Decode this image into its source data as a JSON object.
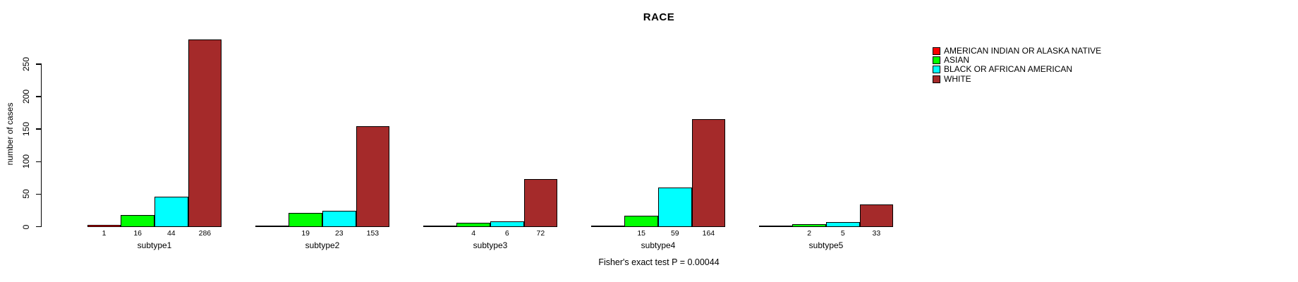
{
  "title": "RACE",
  "y_axis": {
    "label": "number of cases"
  },
  "footer": {
    "annotation": "Fisher's exact test P = 0.00044"
  },
  "colors": {
    "background": "#FFFFFF",
    "text": "#000000",
    "bar_border": "#000000"
  },
  "legend": {
    "position": "top-right",
    "items": [
      {
        "label": "AMERICAN INDIAN OR ALASKA NATIVE",
        "color": "#FF0000"
      },
      {
        "label": "ASIAN",
        "color": "#00FF00"
      },
      {
        "label": "BLACK OR AFRICAN AMERICAN",
        "color": "#00FFFF"
      },
      {
        "label": "WHITE",
        "color": "#A52A2A"
      }
    ]
  },
  "chart_data": {
    "type": "bar",
    "title": "RACE",
    "xlabel": "",
    "ylabel": "number of cases",
    "categories": [
      "subtype1",
      "subtype2",
      "subtype3",
      "subtype4",
      "subtype5"
    ],
    "series": [
      {
        "name": "AMERICAN INDIAN OR ALASKA NATIVE",
        "color": "#FF0000",
        "values": [
          1,
          0,
          0,
          0,
          0
        ]
      },
      {
        "name": "ASIAN",
        "color": "#00FF00",
        "values": [
          16,
          19,
          4,
          15,
          2
        ]
      },
      {
        "name": "BLACK OR AFRICAN AMERICAN",
        "color": "#00FFFF",
        "values": [
          44,
          23,
          6,
          59,
          5
        ]
      },
      {
        "name": "WHITE",
        "color": "#A52A2A",
        "values": [
          286,
          153,
          72,
          164,
          33
        ]
      }
    ],
    "bar_value_labels": [
      [
        "1",
        "16",
        "44",
        "286"
      ],
      [
        "",
        "19",
        "23",
        "153"
      ],
      [
        "",
        "4",
        "6",
        "72"
      ],
      [
        "",
        "15",
        "59",
        "164"
      ],
      [
        "",
        "2",
        "5",
        "33"
      ]
    ],
    "yticks": [
      0,
      50,
      100,
      150,
      200,
      250
    ],
    "ylim": [
      0,
      290
    ],
    "grid": false,
    "legend_position": "top-right",
    "annotation": "Fisher's exact test P = 0.00044"
  }
}
